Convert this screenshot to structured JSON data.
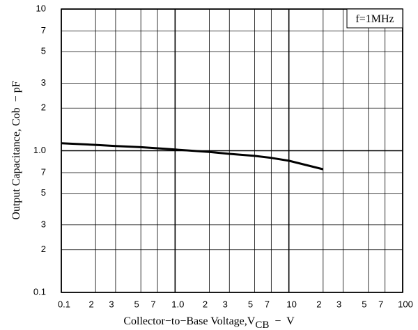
{
  "chart_data": {
    "type": "line",
    "xscale": "log",
    "yscale": "log",
    "grid": true,
    "x_label": {
      "text": "Collector−to−Base Voltage,V",
      "subscript": "CB",
      "suffix": "  −  V"
    },
    "y_label": "Output Capacitance, Cob  − pF",
    "annotation": "f=1MHz",
    "xlim": [
      0.1,
      100
    ],
    "ylim": [
      0.1,
      10
    ],
    "xticks": [
      0.1,
      {
        "value": 0.2,
        "label": "2"
      },
      {
        "value": 0.3,
        "label": "3"
      },
      {
        "value": 0.5,
        "label": "5"
      },
      {
        "value": 0.7,
        "label": "7"
      },
      {
        "value": 1,
        "label": "1.0"
      },
      2,
      3,
      5,
      7,
      10,
      {
        "value": 20,
        "label": "2"
      },
      {
        "value": 30,
        "label": "3"
      },
      {
        "value": 50,
        "label": "5"
      },
      {
        "value": 70,
        "label": "7"
      },
      100
    ],
    "yticks": [
      0.1,
      {
        "value": 0.2,
        "label": "2"
      },
      {
        "value": 0.3,
        "label": "3"
      },
      {
        "value": 0.5,
        "label": "5"
      },
      {
        "value": 0.7,
        "label": "7"
      },
      {
        "value": 1,
        "label": "1.0"
      },
      2,
      3,
      5,
      7,
      10
    ],
    "series": [
      {
        "color": "#000000",
        "x": [
          0.1,
          0.2,
          0.3,
          0.5,
          0.7,
          1,
          2,
          3,
          5,
          7,
          10,
          20
        ],
        "values": [
          1.13,
          1.1,
          1.08,
          1.06,
          1.04,
          1.02,
          0.98,
          0.95,
          0.92,
          0.89,
          0.85,
          0.74
        ]
      }
    ]
  }
}
